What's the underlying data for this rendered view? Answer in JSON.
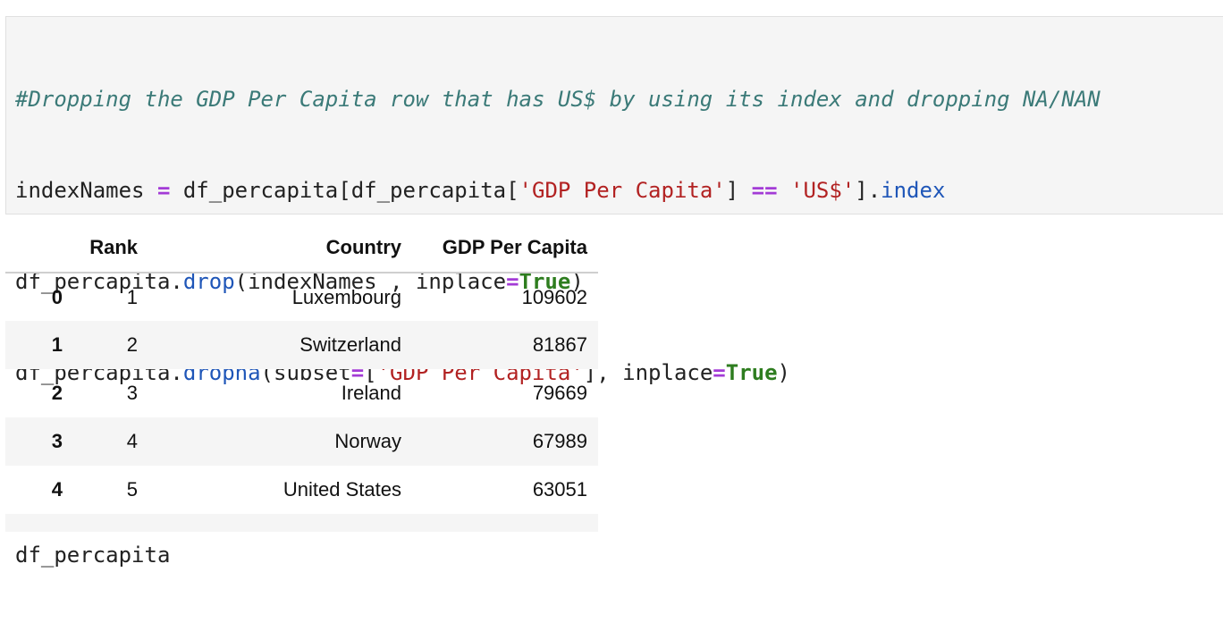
{
  "code": {
    "line1_comment": "#Dropping the GDP Per Capita row that has US$ by using its index and dropping NA/NAN",
    "line2": {
      "var": "indexNames ",
      "eq": "=",
      "p1": " df_percapita[df_percapita[",
      "str1": "'GDP Per Capita'",
      "p2": "] ",
      "eqeq": "==",
      "p3": " ",
      "str2": "'US$'",
      "p4": "].",
      "attr": "index"
    },
    "line3": {
      "p1": "df_percapita.",
      "attr": "drop",
      "p2": "(indexNames , inplace",
      "eq": "=",
      "kw": "True",
      "p3": ")"
    },
    "line4": {
      "p1": "df_percapita.",
      "attr": "dropna",
      "p2": "(subset",
      "eq": "=",
      "p3": "[",
      "str": "'GDP Per Capita'",
      "p4": "], inplace",
      "eq2": "=",
      "kw": "True",
      "p5": ")"
    },
    "line6": "df_percapita"
  },
  "table": {
    "columns": [
      "",
      "Rank",
      "Country",
      "GDP Per Capita"
    ],
    "rows": [
      {
        "index": "0",
        "rank": "1",
        "country": "Luxembourg",
        "gdp": "109602"
      },
      {
        "index": "1",
        "rank": "2",
        "country": "Switzerland",
        "gdp": "81867"
      },
      {
        "index": "2",
        "rank": "3",
        "country": "Ireland",
        "gdp": "79669"
      },
      {
        "index": "3",
        "rank": "4",
        "country": "Norway",
        "gdp": "67989"
      },
      {
        "index": "4",
        "rank": "5",
        "country": "United States",
        "gdp": "63051"
      }
    ]
  }
}
